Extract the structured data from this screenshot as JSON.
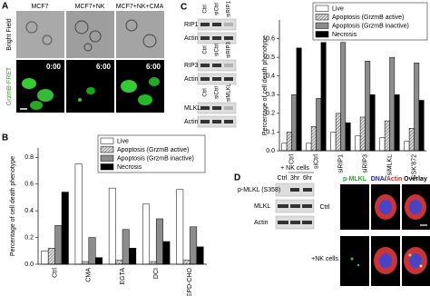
{
  "panels": {
    "a": {
      "label": "A",
      "columns": [
        "MCF7",
        "MCF7+NK",
        "MCF7+NK+CMA"
      ],
      "rows": [
        "Bright Field",
        "GrzmB-FRET"
      ],
      "times": [
        "0:00",
        "6:00",
        "6:00"
      ]
    },
    "c": {
      "label": "C",
      "blots": [
        {
          "lanes": [
            "Ctrl",
            "siCtrl",
            "siRIP1"
          ],
          "bands": [
            "RIP1",
            "Actin"
          ]
        },
        {
          "lanes": [
            "Ctrl",
            "siCtrl",
            "siRIP3"
          ],
          "bands": [
            "RIP3",
            "Actin"
          ]
        },
        {
          "lanes": [
            "Ctrl",
            "siCtrl",
            "siMLKL"
          ],
          "bands": [
            "MLKL",
            "Actin"
          ]
        }
      ]
    },
    "d": {
      "label": "D",
      "treatment": "+ NK cells",
      "lanes": [
        "Ctrl",
        "3hr",
        "6hr"
      ],
      "bands": [
        "p-MLKL (S358)",
        "MLKL",
        "Actin"
      ],
      "stain_green": "p-MLKL",
      "stain_blue": "DNA",
      "stain_sep": "/",
      "stain_red": "Actin",
      "overlay": "Overlay",
      "rows": [
        "Ctrl",
        "+NK cells"
      ]
    }
  },
  "chart_data": [
    {
      "type": "bar",
      "panel": "B",
      "ylabel": "Percentage of cell death phenotype",
      "categories": [
        "Ctrl",
        "CMA",
        "EGTA",
        "DCI",
        "Ac-IEPD-CHO"
      ],
      "series": [
        {
          "name": "Live",
          "color": "#ffffff",
          "hatch": false,
          "values": [
            0.1,
            0.75,
            0.57,
            0.45,
            0.56
          ]
        },
        {
          "name": "Apoptosis (GrzmB active)",
          "color": "#aaaaaa",
          "hatch": true,
          "values": [
            0.12,
            0.02,
            0.03,
            0.02,
            0.03
          ]
        },
        {
          "name": "Apoptosis (GrzmB inactive)",
          "color": "#8c8c8c",
          "hatch": false,
          "values": [
            0.29,
            0.2,
            0.26,
            0.34,
            0.28
          ]
        },
        {
          "name": "Necrosis",
          "color": "#000000",
          "hatch": false,
          "values": [
            0.54,
            0.05,
            0.12,
            0.17,
            0.13
          ]
        }
      ],
      "ylim": [
        0,
        0.87
      ],
      "yticks": [
        {
          "value": 0,
          "label": "0.0"
        },
        0.2,
        0.4,
        0.6,
        0.8
      ]
    },
    {
      "type": "bar",
      "ylabel": "Percentage of cell death phenotype",
      "categories": [
        "Ctrl",
        "siCtrl",
        "siRIP1",
        "siRIP3",
        "siMLKL",
        "GSK'872"
      ],
      "series": [
        {
          "name": "Live",
          "color": "#ffffff",
          "hatch": false,
          "values": [
            0.04,
            0.04,
            0.1,
            0.08,
            0.07,
            0.05
          ]
        },
        {
          "name": "Apoptosis (GrzmB active)",
          "color": "#aaaaaa",
          "hatch": true,
          "values": [
            0.1,
            0.13,
            0.2,
            0.18,
            0.16,
            0.12
          ]
        },
        {
          "name": "Apoptosis (GrzmB inactive)",
          "color": "#8c8c8c",
          "hatch": false,
          "values": [
            0.3,
            0.28,
            0.58,
            0.48,
            0.5,
            0.47
          ]
        },
        {
          "name": "Necrosis",
          "color": "#000000",
          "hatch": false,
          "values": [
            0.55,
            0.58,
            0.15,
            0.3,
            0.3,
            0.27
          ]
        }
      ],
      "ylim": [
        0,
        0.7
      ],
      "yticks": [
        {
          "value": 0,
          "label": "0.0"
        },
        0.1,
        0.2,
        0.3,
        0.4,
        0.5,
        0.6
      ]
    }
  ]
}
